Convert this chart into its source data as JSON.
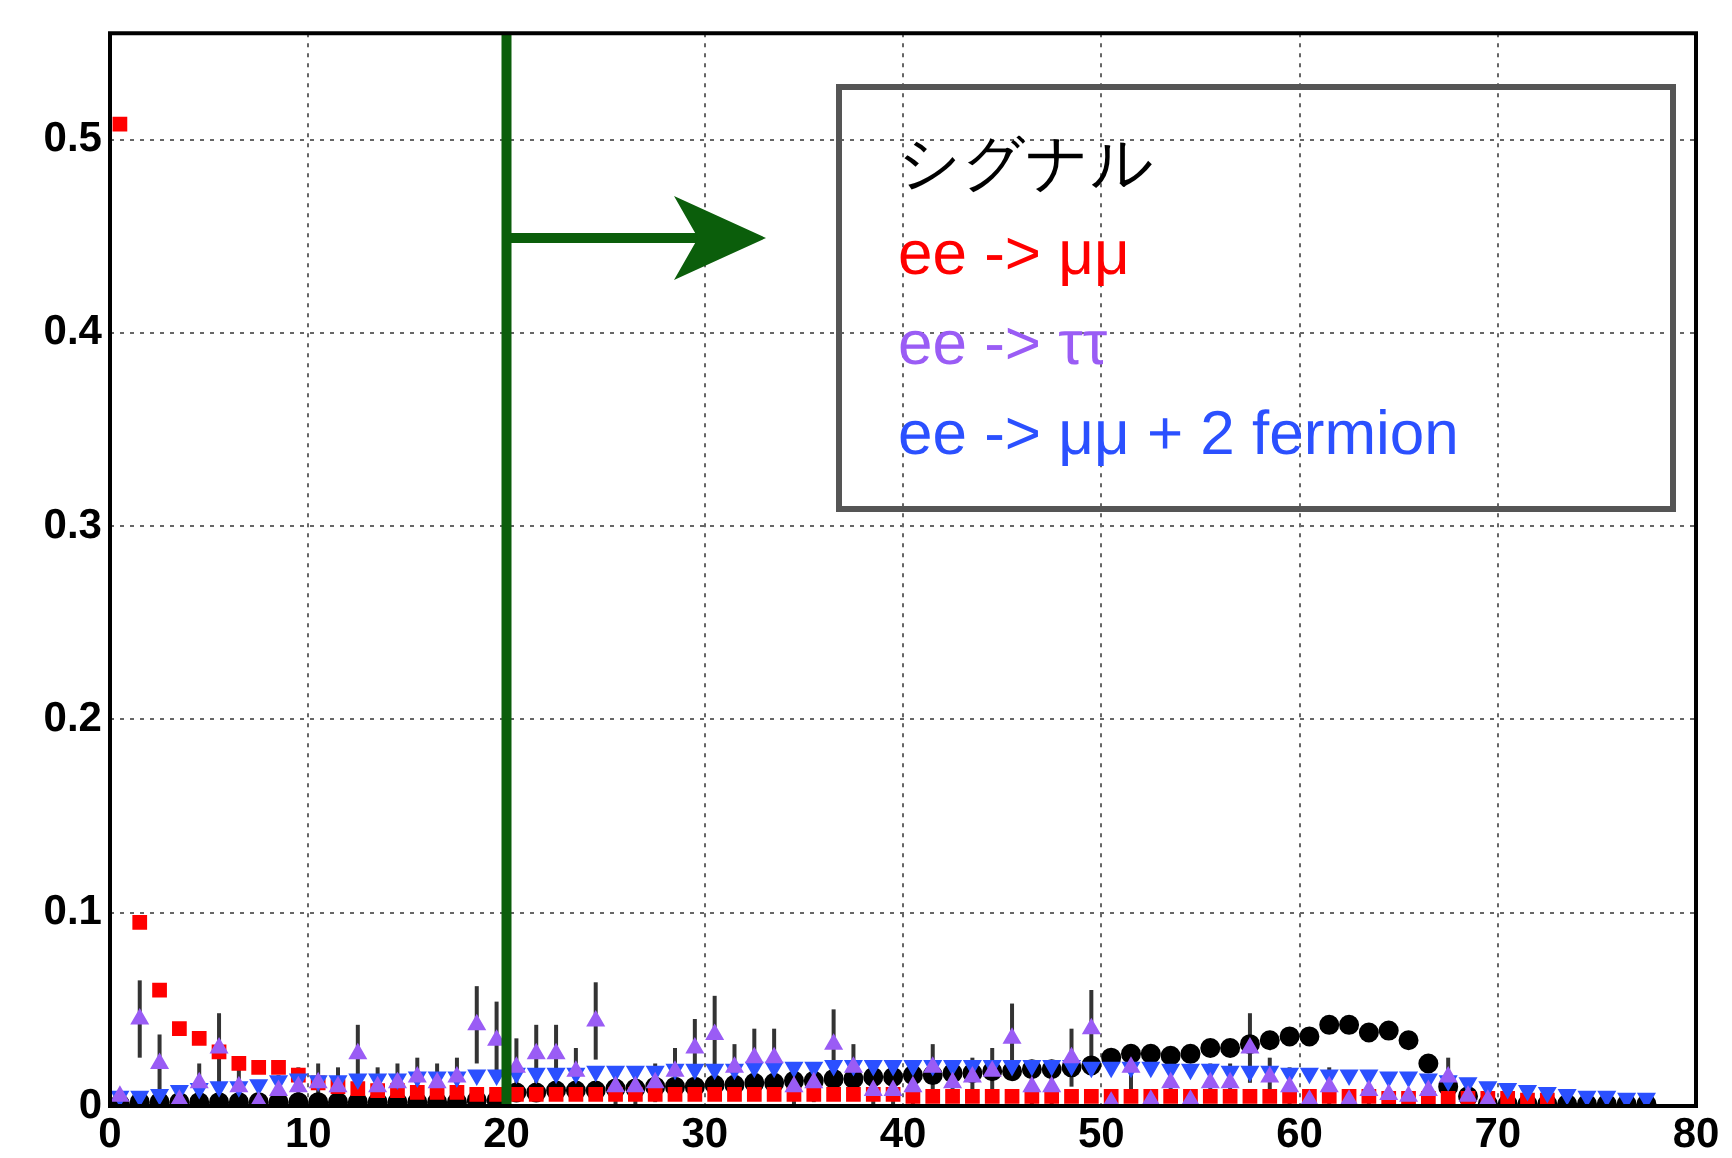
{
  "chart_data": {
    "type": "scatter",
    "x": [
      0.5,
      1.5,
      2.5,
      3.5,
      4.5,
      5.5,
      6.5,
      7.5,
      8.5,
      9.5,
      10.5,
      11.5,
      12.5,
      13.5,
      14.5,
      15.5,
      16.5,
      17.5,
      18.5,
      19.5,
      20.5,
      21.5,
      22.5,
      23.5,
      24.5,
      25.5,
      26.5,
      27.5,
      28.5,
      29.5,
      30.5,
      31.5,
      32.5,
      33.5,
      34.5,
      35.5,
      36.5,
      37.5,
      38.5,
      39.5,
      40.5,
      41.5,
      42.5,
      43.5,
      44.5,
      45.5,
      46.5,
      47.5,
      48.5,
      49.5,
      50.5,
      51.5,
      52.5,
      53.5,
      54.5,
      55.5,
      56.5,
      57.5,
      58.5,
      59.5,
      60.5,
      61.5,
      62.5,
      63.5,
      64.5,
      65.5,
      66.5,
      67.5,
      68.5,
      69.5,
      70.5,
      71.5,
      72.5,
      73.5,
      74.5,
      75.5,
      76.5,
      77.5
    ],
    "series": [
      {
        "name": "シグナル",
        "color": "#000000",
        "marker": "circle",
        "values": [
          0.001,
          0.002,
          0.002,
          0.002,
          0.002,
          0.002,
          0.002,
          0.002,
          0.002,
          0.002,
          0.002,
          0.002,
          0.002,
          0.002,
          0.002,
          0.002,
          0.002,
          0.002,
          0.003,
          0.003,
          0.007,
          0.007,
          0.008,
          0.008,
          0.008,
          0.009,
          0.009,
          0.01,
          0.01,
          0.01,
          0.011,
          0.011,
          0.012,
          0.012,
          0.013,
          0.013,
          0.014,
          0.014,
          0.015,
          0.015,
          0.016,
          0.016,
          0.017,
          0.017,
          0.018,
          0.018,
          0.019,
          0.019,
          0.02,
          0.021,
          0.025,
          0.027,
          0.027,
          0.026,
          0.027,
          0.03,
          0.03,
          0.032,
          0.034,
          0.036,
          0.036,
          0.042,
          0.042,
          0.038,
          0.039,
          0.034,
          0.022,
          0.01,
          0.005,
          0.001,
          0.001,
          0.001,
          0.001,
          0.001,
          0.001,
          0.001,
          0.001,
          0.001
        ]
      },
      {
        "name": "ee -> μμ",
        "color": "#ff0000",
        "marker": "square",
        "values": [
          0.508,
          0.095,
          0.06,
          0.04,
          0.035,
          0.028,
          0.022,
          0.02,
          0.02,
          0.016,
          0.012,
          0.01,
          0.009,
          0.008,
          0.008,
          0.007,
          0.007,
          0.007,
          0.006,
          0.006,
          0.006,
          0.006,
          0.006,
          0.006,
          0.006,
          0.006,
          0.006,
          0.006,
          0.006,
          0.006,
          0.006,
          0.006,
          0.006,
          0.006,
          0.006,
          0.006,
          0.006,
          0.006,
          0.006,
          0.006,
          0.005,
          0.005,
          0.005,
          0.005,
          0.005,
          0.005,
          0.005,
          0.005,
          0.005,
          0.005,
          0.005,
          0.005,
          0.005,
          0.005,
          0.005,
          0.005,
          0.005,
          0.005,
          0.005,
          0.005,
          0.005,
          0.005,
          0.005,
          0.005,
          0.004,
          0.004,
          0.004,
          0.004,
          0.004,
          0.004,
          0.004,
          0.003,
          0.003,
          null,
          null,
          null,
          null,
          null
        ]
      },
      {
        "name": "ee -> ττ",
        "color": "#9a5cf5",
        "marker": "triangle",
        "values": [
          0.005,
          0.045,
          0.022,
          0.003,
          0.012,
          0.03,
          0.01,
          0.002,
          0.008,
          0.01,
          0.012,
          0.01,
          0.027,
          0.01,
          0.012,
          0.015,
          0.012,
          0.015,
          0.042,
          0.034,
          0.02,
          0.027,
          0.027,
          0.018,
          0.044,
          0.01,
          0.01,
          0.012,
          0.018,
          0.03,
          0.037,
          0.02,
          0.025,
          0.025,
          0.01,
          0.012,
          0.032,
          0.02,
          0.008,
          0.008,
          0.01,
          0.02,
          0.012,
          0.015,
          0.018,
          0.035,
          0.01,
          0.01,
          0.025,
          0.04,
          0.002,
          0.02,
          0.003,
          0.012,
          0.003,
          0.012,
          0.012,
          0.03,
          0.015,
          0.01,
          0.003,
          0.01,
          0.003,
          0.008,
          0.006,
          0.005,
          0.008,
          0.015,
          0.005,
          0.003,
          null,
          null,
          null,
          null,
          null,
          null,
          null,
          null
        ],
        "errors": [
          null,
          0.02,
          0.015,
          null,
          0.01,
          0.018,
          0.01,
          null,
          0.008,
          0.01,
          0.01,
          0.01,
          0.015,
          0.01,
          0.01,
          0.01,
          0.01,
          0.01,
          0.02,
          0.02,
          0.015,
          0.015,
          0.015,
          0.012,
          0.02,
          0.01,
          0.01,
          0.01,
          0.012,
          0.015,
          0.02,
          0.012,
          0.015,
          0.015,
          0.01,
          0.01,
          0.018,
          0.012,
          0.008,
          0.008,
          0.01,
          0.012,
          0.01,
          0.01,
          0.012,
          0.018,
          0.01,
          0.01,
          0.015,
          0.02,
          null,
          0.012,
          null,
          0.01,
          null,
          0.01,
          0.01,
          0.018,
          0.01,
          0.01,
          null,
          0.01,
          null,
          0.008,
          null,
          null,
          0.008,
          0.01,
          null,
          null,
          null,
          null,
          null,
          null,
          null,
          null,
          null,
          null
        ]
      },
      {
        "name": "ee -> μμ + 2 fermion",
        "color": "#2b50ff",
        "marker": "triangle-down",
        "values": [
          0.005,
          0.005,
          0.006,
          0.008,
          0.009,
          0.01,
          0.01,
          0.011,
          0.013,
          0.014,
          0.013,
          0.013,
          0.014,
          0.014,
          0.014,
          0.015,
          0.015,
          0.015,
          0.016,
          0.016,
          0.017,
          0.017,
          0.017,
          0.017,
          0.018,
          0.018,
          0.018,
          0.018,
          0.019,
          0.019,
          0.019,
          0.019,
          0.02,
          0.02,
          0.02,
          0.02,
          0.021,
          0.021,
          0.021,
          0.021,
          0.021,
          0.021,
          0.021,
          0.021,
          0.021,
          0.021,
          0.021,
          0.021,
          0.021,
          0.02,
          0.02,
          0.02,
          0.02,
          0.019,
          0.019,
          0.019,
          0.018,
          0.018,
          0.018,
          0.017,
          0.017,
          0.016,
          0.016,
          0.016,
          0.015,
          0.015,
          0.014,
          0.013,
          0.012,
          0.01,
          0.009,
          0.008,
          0.007,
          0.006,
          0.005,
          0.005,
          0.004,
          0.004
        ]
      }
    ],
    "xlim": [
      0,
      80
    ],
    "xticks": [
      0,
      10,
      20,
      30,
      40,
      50,
      60,
      70,
      80
    ],
    "ylim": [
      0,
      0.555
    ],
    "yticks": [
      0,
      0.1,
      0.2,
      0.3,
      0.4,
      0.5
    ],
    "grid": true,
    "legend": "top right",
    "ref_lines": [
      {
        "axis": "x",
        "value": 20,
        "label": null,
        "color": "#0b5e0b"
      }
    ]
  }
}
